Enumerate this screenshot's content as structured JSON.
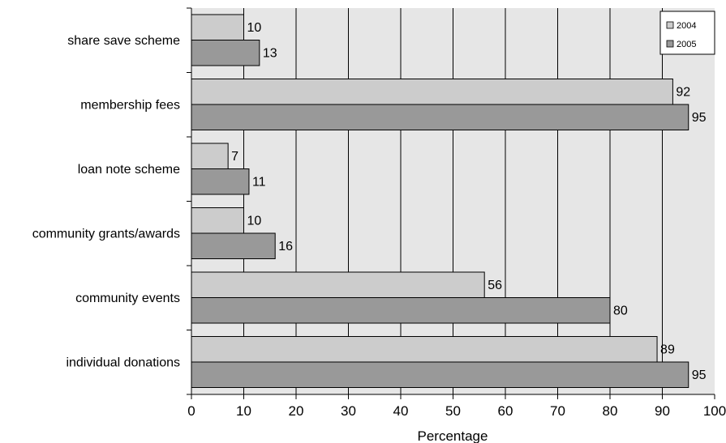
{
  "chart_data": {
    "type": "bar",
    "orientation": "horizontal",
    "categories": [
      "share save scheme",
      "membership fees",
      "loan note scheme",
      "community grants/awards",
      "community events",
      "individual donations"
    ],
    "series": [
      {
        "name": "2004",
        "values": [
          10,
          92,
          7,
          10,
          56,
          89
        ]
      },
      {
        "name": "2005",
        "values": [
          13,
          95,
          11,
          16,
          80,
          95
        ]
      }
    ],
    "xlabel": "Percentage",
    "xlim": [
      0,
      100
    ],
    "xticks": [
      "0",
      "10",
      "20",
      "30",
      "40",
      "50",
      "60",
      "70",
      "80",
      "90",
      "100"
    ],
    "grid": "vertical",
    "legend_position": "top-right",
    "colors": {
      "plot_background": "#e6e6e6",
      "series_2004": "#cccccc",
      "series_2005": "#999999",
      "bar_stroke": "#000000",
      "grid": "#000000"
    }
  }
}
